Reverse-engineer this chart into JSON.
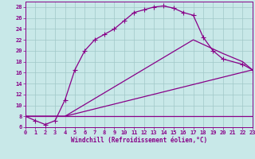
{
  "title": "",
  "xlabel": "Windchill (Refroidissement éolien,°C)",
  "xlim": [
    0,
    23
  ],
  "ylim": [
    6,
    29
  ],
  "xticks": [
    0,
    1,
    2,
    3,
    4,
    5,
    6,
    7,
    8,
    9,
    10,
    11,
    12,
    13,
    14,
    15,
    16,
    17,
    18,
    19,
    20,
    21,
    22,
    23
  ],
  "yticks": [
    6,
    8,
    10,
    12,
    14,
    16,
    18,
    20,
    22,
    24,
    26,
    28
  ],
  "bg_color": "#c8e8e8",
  "line_color": "#880088",
  "grid_color": "#a0c8c8",
  "curves": [
    {
      "x": [
        0,
        1,
        2,
        3,
        4,
        5,
        6,
        7,
        8,
        9,
        10,
        11,
        12,
        13,
        14,
        15,
        16,
        17,
        18,
        19,
        20,
        22,
        23
      ],
      "y": [
        8,
        7.2,
        6.5,
        7.2,
        11,
        16.5,
        20,
        22,
        23,
        24,
        25.5,
        27,
        27.5,
        28,
        28.2,
        27.8,
        27,
        26.5,
        22.5,
        20,
        18.5,
        17.5,
        16.5
      ],
      "markers": true
    },
    {
      "x": [
        0,
        4,
        23
      ],
      "y": [
        8,
        8,
        8
      ],
      "markers": false
    },
    {
      "x": [
        0,
        4,
        23
      ],
      "y": [
        8,
        8,
        16.5
      ],
      "markers": false
    },
    {
      "x": [
        0,
        4,
        17,
        20,
        22,
        23
      ],
      "y": [
        8,
        8,
        22,
        19.5,
        18,
        16.5
      ],
      "markers": false
    }
  ]
}
